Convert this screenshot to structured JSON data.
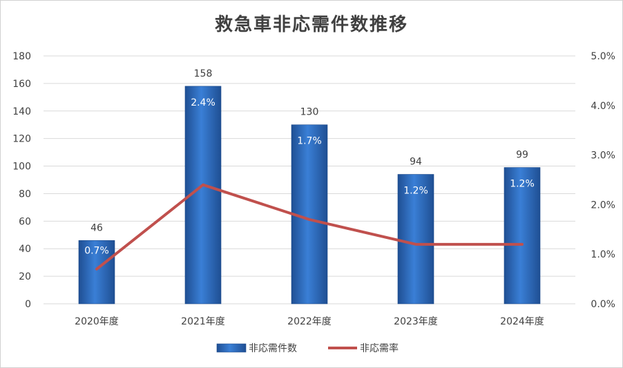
{
  "chart_data": {
    "type": "bar",
    "title": "救急車非応需件数推移",
    "categories": [
      "2020年度",
      "2021年度",
      "2022年度",
      "2023年度",
      "2024年度"
    ],
    "series": [
      {
        "name": "非応需件数",
        "type": "bar",
        "axis": "left",
        "values": [
          46,
          158,
          130,
          94,
          99
        ],
        "color": "#2e6fc7"
      },
      {
        "name": "非応需率",
        "type": "line",
        "axis": "right",
        "values": [
          0.007,
          0.024,
          0.017,
          0.012,
          0.012
        ],
        "labels": [
          "0.7%",
          "2.4%",
          "1.7%",
          "1.2%",
          "1.2%"
        ],
        "color": "#c0504d"
      }
    ],
    "ylim_left": [
      0,
      180
    ],
    "yticks_left": [
      "0",
      "20",
      "40",
      "60",
      "80",
      "100",
      "120",
      "140",
      "160",
      "180"
    ],
    "ylim_right": [
      0,
      0.05
    ],
    "yticks_right": [
      "0.0%",
      "1.0%",
      "2.0%",
      "3.0%",
      "4.0%",
      "5.0%"
    ],
    "grid": true,
    "legend": "bottom-center"
  }
}
